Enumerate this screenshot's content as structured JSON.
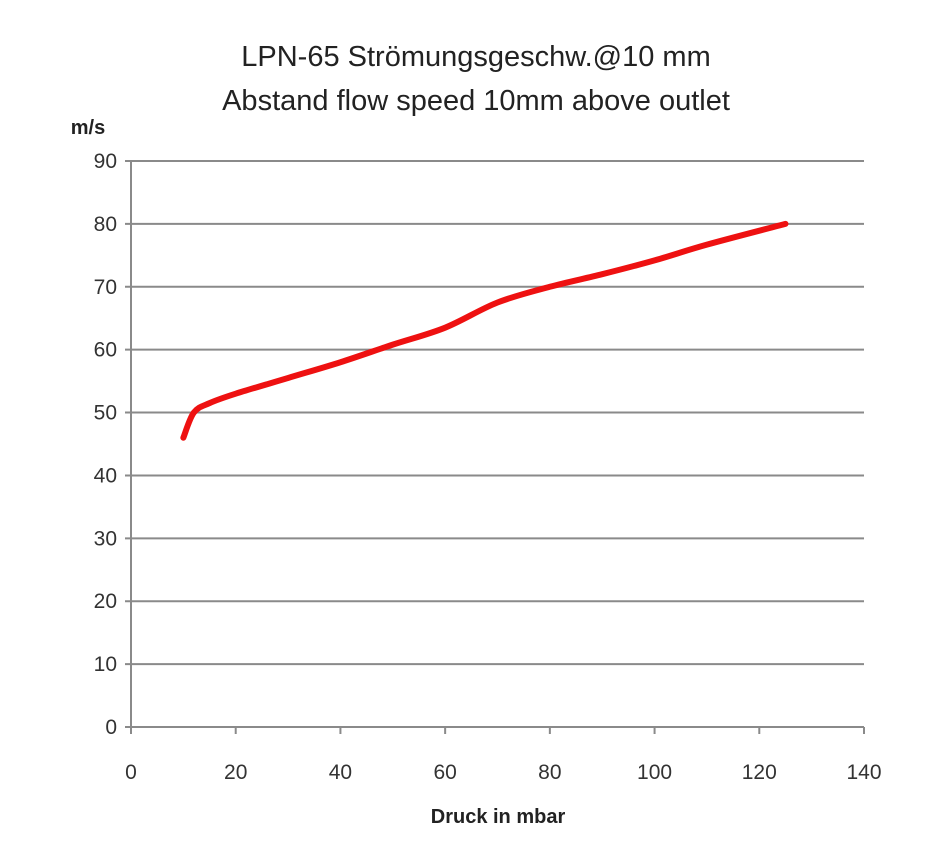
{
  "chart_data": {
    "type": "line",
    "title": [
      "LPN-65 Strömungsgeschw.@10 mm",
      "Abstand flow speed 10mm above outlet"
    ],
    "xlabel": "Druck in mbar",
    "ylabel": "m/s",
    "xlim": [
      0,
      140
    ],
    "ylim": [
      0,
      90
    ],
    "xticks": [
      0,
      20,
      40,
      60,
      80,
      100,
      120,
      140
    ],
    "yticks": [
      0,
      10,
      20,
      30,
      40,
      50,
      60,
      70,
      80,
      90
    ],
    "grid": "horizontal",
    "series": [
      {
        "name": "flow speed",
        "color": "#ee1111",
        "x": [
          10,
          12,
          15,
          20,
          30,
          40,
          50,
          60,
          70,
          80,
          90,
          100,
          110,
          125
        ],
        "y": [
          46,
          50,
          51.5,
          53,
          55.5,
          58,
          60.8,
          63.5,
          67.5,
          70,
          72,
          74.2,
          76.7,
          80
        ]
      }
    ]
  }
}
